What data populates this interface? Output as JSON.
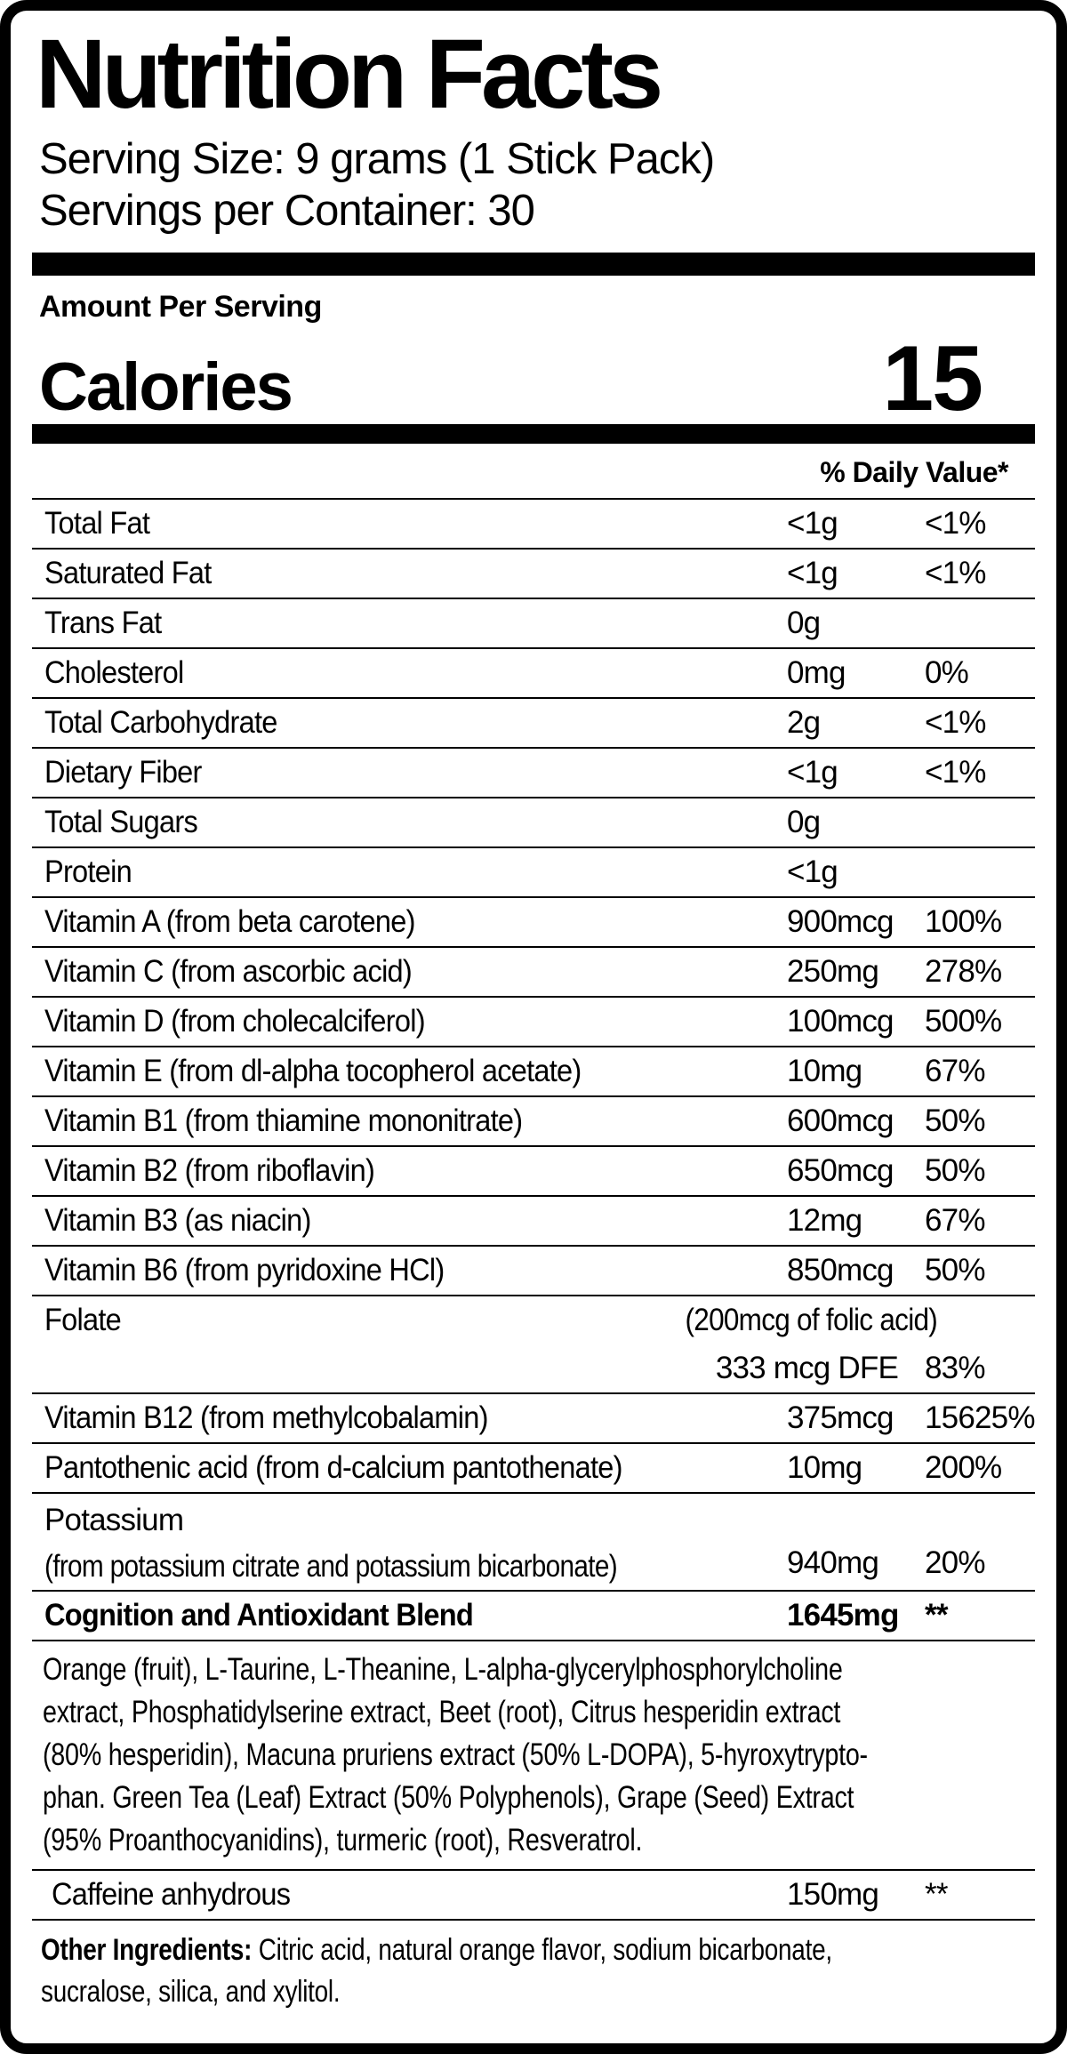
{
  "colors": {
    "foreground": "#000000",
    "background": "#ffffff"
  },
  "header": {
    "title": "Nutrition Facts",
    "serving_size": "Serving Size: 9 grams (1 Stick Pack)",
    "servings_per_container": "Servings per Container: 30",
    "amount_per_serving": "Amount Per Serving",
    "calories_label": "Calories",
    "calories_value": "15",
    "daily_value_header": "% Daily Value*"
  },
  "nutrients": [
    {
      "name": "Total Fat",
      "amount": "<1g",
      "dv": "<1%"
    },
    {
      "name": "Saturated Fat",
      "amount": "<1g",
      "dv": "<1%"
    },
    {
      "name": "Trans Fat",
      "amount": "0g",
      "dv": ""
    },
    {
      "name": "Cholesterol",
      "amount": "0mg",
      "dv": "0%"
    },
    {
      "name": "Total Carbohydrate",
      "amount": "2g",
      "dv": "<1%"
    },
    {
      "name": "Dietary Fiber",
      "amount": "<1g",
      "dv": "<1%"
    },
    {
      "name": "Total Sugars",
      "amount": "0g",
      "dv": ""
    },
    {
      "name": "Protein",
      "amount": "<1g",
      "dv": ""
    },
    {
      "name": "Vitamin A (from beta carotene)",
      "amount": "900mcg",
      "dv": "100%"
    },
    {
      "name": "Vitamin C (from ascorbic acid)",
      "amount": "250mg",
      "dv": "278%"
    },
    {
      "name": "Vitamin D (from cholecalciferol)",
      "amount": "100mcg",
      "dv": "500%"
    },
    {
      "name": "Vitamin E (from dl-alpha tocopherol acetate)",
      "amount": "10mg",
      "dv": "67%"
    },
    {
      "name": "Vitamin B1 (from thiamine mononitrate)",
      "amount": "600mcg",
      "dv": "50%"
    },
    {
      "name": "Vitamin B2 (from riboflavin)",
      "amount": "650mcg",
      "dv": "50%"
    },
    {
      "name": "Vitamin B3 (as niacin)",
      "amount": "12mg",
      "dv": "67%"
    },
    {
      "name": "Vitamin B6 (from pyridoxine HCl)",
      "amount": "850mcg",
      "dv": "50%"
    },
    {
      "name": "Vitamin B12 (from methylcobalamin)",
      "amount": "375mcg",
      "dv": "15625%"
    },
    {
      "name": "Pantothenic acid (from d-calcium pantothenate)",
      "amount": "10mg",
      "dv": "200%"
    }
  ],
  "folate": {
    "name": "Folate",
    "note": "(200mcg of folic acid)",
    "amount": "333 mcg DFE",
    "dv": "83%"
  },
  "potassium": {
    "name": "Potassium",
    "source": "(from potassium citrate and potassium bicarbonate)",
    "amount": "940mg",
    "dv": "20%"
  },
  "blend": {
    "name": "Cognition and Antioxidant Blend",
    "amount": "1645mg",
    "dv": "**"
  },
  "blend_description_lines": [
    "Orange (fruit), L-Taurine, L-Theanine, L-alpha-glycerylphosphorylcholine",
    "extract, Phosphatidylserine extract, Beet (root), Citrus hesperidin extract",
    "(80% hesperidin), Macuna pruriens extract (50% L-DOPA), 5-hyroxytrypto-",
    "phan. Green Tea (Leaf) Extract (50% Polyphenols), Grape (Seed) Extract",
    "(95% Proanthocyanidins), turmeric (root), Resveratrol."
  ],
  "caffeine": {
    "name": "Caffeine anhydrous",
    "amount": "150mg",
    "dv": "**"
  },
  "other_ingredients": {
    "label": "Other Ingredients:",
    "line1": "Citric acid, natural orange flavor, sodium bicarbonate,",
    "line2": "sucralose, silica, and xylitol."
  }
}
